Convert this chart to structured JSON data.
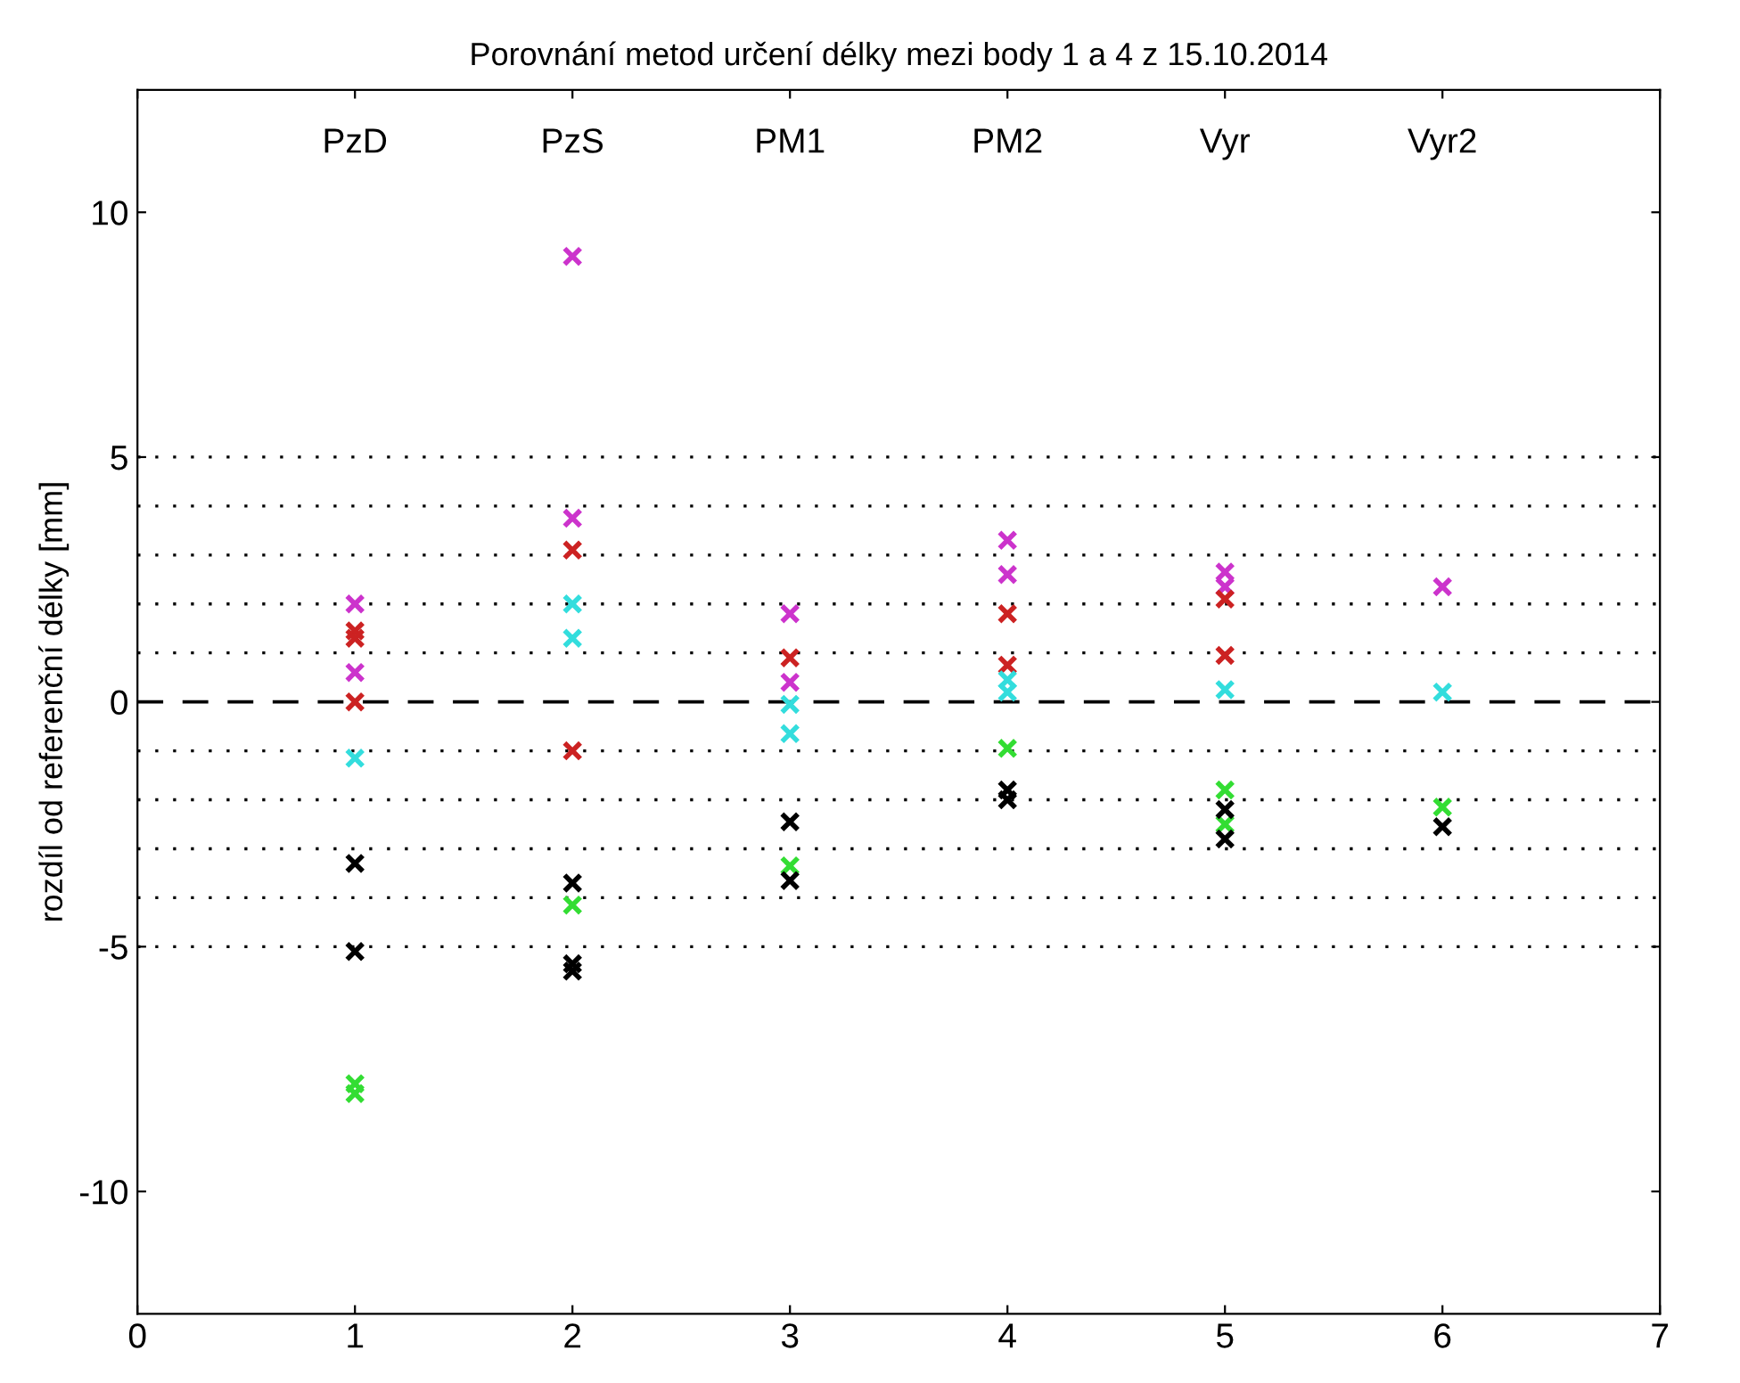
{
  "chart_data": {
    "type": "scatter",
    "title": "Porovnání metod určení délky mezi body 1 a 4 z 15.10.2014",
    "ylabel": "rozdíl od referenční délky [mm]",
    "xlim": [
      0,
      7
    ],
    "xticks": [
      0,
      1,
      2,
      3,
      4,
      5,
      6,
      7
    ],
    "ylim": [
      -12.5,
      12.5
    ],
    "yticks": [
      -10,
      -5,
      0,
      5,
      10
    ],
    "grid": false,
    "marker": "cross",
    "series": [
      {
        "color": "#cc33cc",
        "x": [
          1,
          1,
          2,
          2,
          3,
          3,
          4,
          4,
          5,
          5,
          6
        ],
        "values": [
          2.0,
          0.6,
          9.1,
          3.75,
          1.8,
          0.4,
          3.3,
          2.6,
          2.65,
          2.35,
          2.35
        ]
      },
      {
        "color": "#cc2222",
        "x": [
          1,
          1,
          1,
          2,
          2,
          3,
          4,
          4,
          5,
          5
        ],
        "values": [
          1.45,
          1.3,
          0.0,
          3.1,
          -1.0,
          0.9,
          1.8,
          0.75,
          2.1,
          0.95
        ]
      },
      {
        "color": "#33dddd",
        "x": [
          1,
          2,
          2,
          3,
          3,
          4,
          4,
          5,
          6
        ],
        "values": [
          -1.15,
          2.0,
          1.3,
          -0.05,
          -0.65,
          0.45,
          0.2,
          0.25,
          0.2
        ]
      },
      {
        "color": "#33dd33",
        "x": [
          1,
          1,
          2,
          3,
          4,
          5,
          5,
          6
        ],
        "values": [
          -7.8,
          -8.0,
          -4.15,
          -3.35,
          -0.95,
          -1.8,
          -2.5,
          -2.15
        ]
      },
      {
        "color": "#000000",
        "x": [
          1,
          1,
          2,
          2,
          2,
          3,
          3,
          4,
          4,
          5,
          5,
          6
        ],
        "values": [
          -3.3,
          -5.1,
          -3.7,
          -5.35,
          -5.5,
          -2.45,
          -3.65,
          -1.8,
          -2.0,
          -2.2,
          -2.8,
          -2.55
        ]
      }
    ],
    "ref_lines": [
      {
        "axis": "y",
        "value": 0,
        "color": "#000000",
        "line_style": "dashed"
      },
      {
        "axis": "y",
        "value": 1,
        "color": "#000000",
        "line_style": "dotted"
      },
      {
        "axis": "y",
        "value": 2,
        "color": "#000000",
        "line_style": "dotted"
      },
      {
        "axis": "y",
        "value": 3,
        "color": "#000000",
        "line_style": "dotted"
      },
      {
        "axis": "y",
        "value": 4,
        "color": "#000000",
        "line_style": "dotted"
      },
      {
        "axis": "y",
        "value": 5,
        "color": "#000000",
        "line_style": "dotted"
      },
      {
        "axis": "y",
        "value": -1,
        "color": "#000000",
        "line_style": "dotted"
      },
      {
        "axis": "y",
        "value": -2,
        "color": "#000000",
        "line_style": "dotted"
      },
      {
        "axis": "y",
        "value": -3,
        "color": "#000000",
        "line_style": "dotted"
      },
      {
        "axis": "y",
        "value": -4,
        "color": "#000000",
        "line_style": "dotted"
      },
      {
        "axis": "y",
        "value": -5,
        "color": "#000000",
        "line_style": "dotted"
      }
    ],
    "annotations": [
      "PzD",
      "PzS",
      "PM1",
      "PM2",
      "Vyr",
      "Vyr2"
    ]
  }
}
